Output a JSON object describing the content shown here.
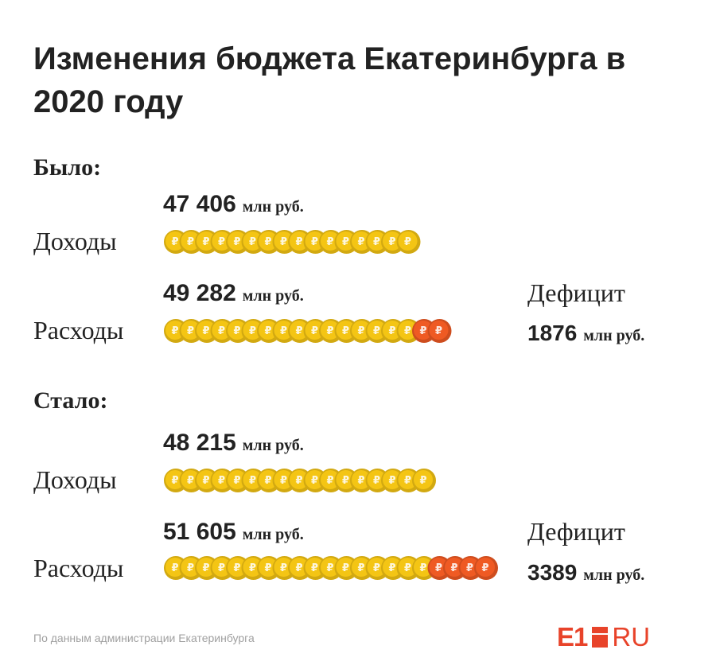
{
  "title": "Изменения бюджета Екатеринбурга в 2020 году",
  "colors": {
    "coin_base": "#f4c514",
    "coin_deficit": "#ef5a23",
    "text": "#222222",
    "source": "#a0a0a0",
    "brand": "#e8432a"
  },
  "sections": [
    {
      "label": "Было:",
      "rows": [
        {
          "label": "Доходы",
          "amount_number": "47 406",
          "amount_unit": "млн руб.",
          "base_coins": 16,
          "deficit_coins": 0
        },
        {
          "label": "Расходы",
          "amount_number": "49 282",
          "amount_unit": "млн руб.",
          "base_coins": 16,
          "deficit_coins": 2
        }
      ],
      "deficit": {
        "label": "Дефицит",
        "amount_number": "1876",
        "amount_unit": "млн руб."
      }
    },
    {
      "label": "Стало:",
      "rows": [
        {
          "label": "Доходы",
          "amount_number": "48 215",
          "amount_unit": "млн руб.",
          "base_coins": 17,
          "deficit_coins": 0
        },
        {
          "label": "Расходы",
          "amount_number": "51 605",
          "amount_unit": "млн руб.",
          "base_coins": 17,
          "deficit_coins": 4
        }
      ],
      "deficit": {
        "label": "Дефицит",
        "amount_number": "3389",
        "amount_unit": "млн руб."
      }
    }
  ],
  "chart_data": {
    "type": "bar",
    "title": "Изменения бюджета Екатеринбурга в 2020 году",
    "categories": [
      "Доходы",
      "Расходы"
    ],
    "series": [
      {
        "name": "Было:",
        "values": [
          47406,
          49282
        ]
      },
      {
        "name": "Стало:",
        "values": [
          48215,
          51605
        ]
      }
    ],
    "deficit": [
      1876,
      3389
    ],
    "unit": "млн руб."
  },
  "source": "По данным администрации Екатеринбурга",
  "logo": {
    "left": "E1",
    "right": "RU"
  }
}
